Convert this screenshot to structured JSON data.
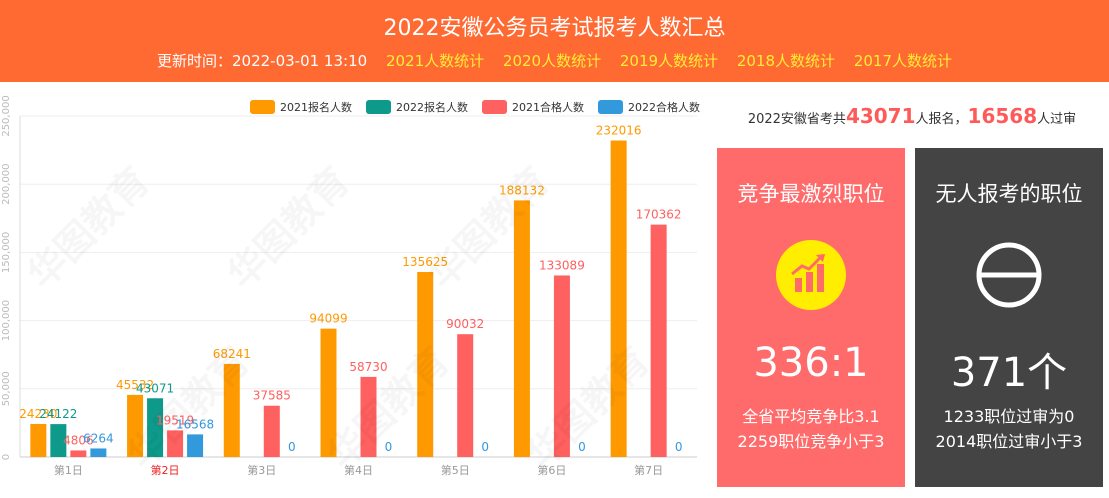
{
  "header": {
    "title": "2022安徽公务员考试报考人数汇总",
    "update_text": "更新时间：2022-03-01 13:10",
    "links": [
      "2021人数统计",
      "2020人数统计",
      "2019人数统计",
      "2018人数统计",
      "2017人数统计"
    ]
  },
  "summary": {
    "prefix": "2022安徽省考共",
    "registered": "43071",
    "mid": "人报名，",
    "passed": "16568",
    "suffix": "人过审"
  },
  "cards": {
    "competitive": {
      "title": "竞争最激烈职位",
      "value": "336:1",
      "line1": "全省平均竞争比3.1",
      "line2": "2259职位竞争小于3",
      "icon": "rising-bar-chart-icon"
    },
    "no_applicants": {
      "title": "无人报考的职位",
      "value": "371个",
      "line1": "1233职位过审为0",
      "line2": "2014职位过审小于3",
      "icon": "empty-set-icon"
    }
  },
  "colors": {
    "accent": "#ff6a33",
    "link": "#ffee33",
    "highlight": "#ff5a5a",
    "card_red": "#ff6b6b",
    "card_dark": "#444444"
  },
  "chart_data": {
    "type": "bar",
    "categories": [
      "第1日",
      "第2日",
      "第3日",
      "第4日",
      "第5日",
      "第6日",
      "第7日"
    ],
    "highlight_category": "第2日",
    "series": [
      {
        "name": "2021报名人数",
        "color": "#ff9900",
        "values": [
          24230,
          45532,
          68241,
          94099,
          135625,
          188132,
          232016
        ]
      },
      {
        "name": "2022报名人数",
        "color": "#0e9a8a",
        "values": [
          24122,
          43071,
          null,
          null,
          null,
          null,
          null
        ]
      },
      {
        "name": "2021合格人数",
        "color": "#ff6060",
        "values": [
          4806,
          19519,
          37585,
          58730,
          90032,
          133089,
          170362
        ]
      },
      {
        "name": "2022合格人数",
        "color": "#3399dd",
        "values": [
          6264,
          16568,
          0,
          0,
          0,
          0,
          0
        ]
      }
    ],
    "yticks": [
      "0",
      "50,000",
      "100,000",
      "150,000",
      "200,000",
      "250,000"
    ],
    "ylim": [
      0,
      250000
    ],
    "legend": "top-right",
    "grid": true,
    "xlabel": "",
    "ylabel": ""
  }
}
